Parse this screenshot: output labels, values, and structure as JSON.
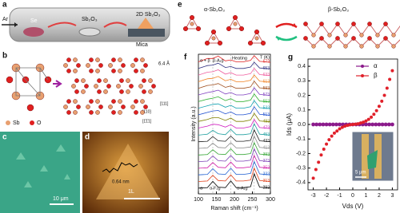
{
  "panels": {
    "a": {
      "label": "a",
      "gas": "Ar",
      "source": "Se",
      "precursor": "Sb₂O₃",
      "product": "2D Sb₂O₃",
      "substrate": "Mica"
    },
    "b": {
      "label": "b",
      "spacing": "6.4 Å",
      "legend": [
        "Sb",
        "O"
      ],
      "directions": [
        "[111]",
        "[110]",
        "[1̄1̄1]"
      ]
    },
    "c": {
      "label": "c",
      "scale": "10 μm"
    },
    "d": {
      "label": "d",
      "height": "0.64 nm",
      "layer": "1L"
    },
    "e": {
      "label": "e",
      "left": "α-Sb₂O₃",
      "right": "β-Sb₂O₃"
    }
  },
  "chart_data": [
    {
      "type": "line",
      "label": "f",
      "xlabel": "Raman shift (cm⁻¹)",
      "ylabel": "Intensity (a.u.)",
      "annotations": [
        "α + β",
        "β-A₁g",
        "Heating",
        "T (K)",
        "α",
        "α-F₂g",
        "α-A₁g"
      ],
      "x": [
        100,
        125,
        140,
        155,
        175,
        190,
        205,
        225,
        245,
        255,
        270,
        300
      ],
      "xlim": [
        100,
        300
      ],
      "xticks": [
        100,
        150,
        200,
        250,
        300
      ],
      "series": [
        {
          "name": "293",
          "color": "#000000",
          "values": [
            0.2,
            0.3,
            1.6,
            0.4,
            0.3,
            1.7,
            0.3,
            0.3,
            0.5,
            3.2,
            0.4,
            0.2
          ]
        },
        {
          "name": "313",
          "color": "#e0401a",
          "values": [
            0.2,
            0.3,
            1.5,
            0.4,
            0.3,
            1.6,
            0.3,
            0.3,
            0.5,
            3.0,
            0.4,
            0.2
          ]
        },
        {
          "name": "333",
          "color": "#1f5fd1",
          "values": [
            0.2,
            0.3,
            1.5,
            0.4,
            0.3,
            1.6,
            0.3,
            0.3,
            0.5,
            3.0,
            0.4,
            0.2
          ]
        },
        {
          "name": "353",
          "color": "#d11fa8",
          "values": [
            0.2,
            0.3,
            1.4,
            0.4,
            0.3,
            1.5,
            0.3,
            0.3,
            0.5,
            2.9,
            0.4,
            0.2
          ]
        },
        {
          "name": "373",
          "color": "#7b3fb5",
          "values": [
            0.2,
            0.3,
            1.4,
            0.4,
            0.3,
            1.5,
            0.3,
            0.3,
            0.5,
            2.9,
            0.4,
            0.2
          ]
        },
        {
          "name": "393",
          "color": "#3aa83a",
          "values": [
            0.2,
            0.3,
            1.3,
            0.4,
            0.3,
            1.5,
            0.3,
            0.3,
            0.5,
            2.8,
            0.4,
            0.2
          ]
        },
        {
          "name": "413",
          "color": "#888888",
          "values": [
            0.2,
            0.3,
            1.3,
            0.4,
            0.3,
            1.4,
            0.3,
            0.3,
            0.5,
            2.8,
            0.4,
            0.2
          ]
        },
        {
          "name": "433",
          "color": "#222222",
          "values": [
            0.2,
            0.3,
            1.3,
            0.4,
            0.3,
            1.4,
            0.3,
            0.3,
            0.5,
            2.7,
            0.4,
            0.2
          ]
        },
        {
          "name": "453",
          "color": "#20a0a0",
          "values": [
            0.2,
            0.4,
            1.2,
            0.5,
            0.3,
            1.4,
            0.3,
            0.3,
            0.5,
            2.6,
            0.4,
            0.2
          ]
        },
        {
          "name": "473",
          "color": "#d020c0",
          "values": [
            0.3,
            0.7,
            1.1,
            1.0,
            0.5,
            1.0,
            0.3,
            0.3,
            0.6,
            2.1,
            0.4,
            0.2
          ]
        },
        {
          "name": "493",
          "color": "#808000",
          "values": [
            0.3,
            0.7,
            1.1,
            1.1,
            0.5,
            1.0,
            0.3,
            0.3,
            0.6,
            2.0,
            0.4,
            0.2
          ]
        },
        {
          "name": "513",
          "color": "#2050d0",
          "values": [
            0.3,
            0.8,
            1.1,
            1.2,
            0.5,
            0.9,
            0.3,
            0.3,
            0.6,
            2.0,
            0.4,
            0.2
          ]
        },
        {
          "name": "533",
          "color": "#10a0b0",
          "values": [
            0.3,
            0.8,
            1.1,
            1.2,
            0.5,
            0.9,
            0.3,
            0.3,
            0.6,
            1.9,
            0.4,
            0.2
          ]
        },
        {
          "name": "553",
          "color": "#30b030",
          "values": [
            0.3,
            0.8,
            1.0,
            1.3,
            0.5,
            0.9,
            0.3,
            0.3,
            0.6,
            1.9,
            0.4,
            0.2
          ]
        },
        {
          "name": "573",
          "color": "#8040c0",
          "values": [
            0.3,
            0.8,
            1.0,
            1.3,
            0.5,
            0.8,
            0.3,
            0.3,
            0.6,
            1.8,
            0.4,
            0.2
          ]
        },
        {
          "name": "593",
          "color": "#a05020",
          "values": [
            0.3,
            0.9,
            1.0,
            1.3,
            0.5,
            0.8,
            0.3,
            0.3,
            0.6,
            1.8,
            0.4,
            0.2
          ]
        },
        {
          "name": "613",
          "color": "#f08020",
          "values": [
            0.3,
            0.9,
            1.0,
            1.4,
            0.5,
            0.8,
            0.3,
            0.3,
            0.6,
            1.7,
            0.4,
            0.2
          ]
        },
        {
          "name": "633",
          "color": "#f060a0",
          "values": [
            0.3,
            0.9,
            1.0,
            1.4,
            0.5,
            0.8,
            0.3,
            0.3,
            0.6,
            1.7,
            0.4,
            0.2
          ]
        },
        {
          "name": "653",
          "color": "#303080",
          "values": [
            0.3,
            0.9,
            1.0,
            1.4,
            0.5,
            0.7,
            0.3,
            0.3,
            0.6,
            1.6,
            0.4,
            0.2
          ]
        },
        {
          "name": "673",
          "color": "#e02020",
          "values": [
            0.3,
            1.0,
            1.0,
            1.5,
            0.5,
            0.7,
            0.3,
            0.3,
            0.6,
            1.6,
            0.4,
            0.2
          ]
        }
      ]
    },
    {
      "type": "scatter",
      "label": "g",
      "xlabel": "Vds (V)",
      "ylabel": "Ids (μA)",
      "inset_scale": "5 μm",
      "legend": "upper right",
      "xlim": [
        -3.4,
        3.4
      ],
      "xticks": [
        -3,
        -2,
        -1,
        0,
        1,
        2,
        3
      ],
      "ylim": [
        -0.45,
        0.45
      ],
      "yticks": [
        -0.4,
        -0.3,
        -0.2,
        -0.1,
        {
          "value": 0,
          "label": "0.0"
        },
        0.1,
        0.2,
        0.3,
        0.4
      ],
      "series": [
        {
          "name": "α",
          "color": "#8b1a8b",
          "x": [
            -3,
            -2.75,
            -2.5,
            -2.25,
            -2,
            -1.75,
            -1.5,
            -1.25,
            -1,
            -0.75,
            -0.5,
            -0.25,
            0,
            0.25,
            0.5,
            0.75,
            1,
            1.25,
            1.5,
            1.75,
            2,
            2.25,
            2.5,
            2.75,
            3
          ],
          "values": [
            0,
            0,
            0,
            0,
            0,
            0,
            0,
            0,
            0,
            0,
            0,
            0,
            0,
            0,
            0,
            0,
            0,
            0,
            0,
            0,
            0,
            0,
            0,
            0,
            0
          ]
        },
        {
          "name": "β",
          "color": "#e0202a",
          "x": [
            -3,
            -2.8,
            -2.6,
            -2.4,
            -2.2,
            -2,
            -1.8,
            -1.6,
            -1.4,
            -1.2,
            -1,
            -0.8,
            -0.6,
            -0.4,
            -0.2,
            0,
            0.2,
            0.4,
            0.6,
            0.8,
            1,
            1.2,
            1.4,
            1.6,
            1.8,
            2,
            2.2,
            2.4,
            2.6,
            2.8,
            3
          ],
          "values": [
            -0.37,
            -0.31,
            -0.26,
            -0.21,
            -0.17,
            -0.135,
            -0.105,
            -0.08,
            -0.06,
            -0.045,
            -0.03,
            -0.02,
            -0.012,
            -0.006,
            -0.002,
            0,
            0.002,
            0.005,
            0.01,
            0.016,
            0.024,
            0.035,
            0.05,
            0.07,
            0.095,
            0.125,
            0.16,
            0.2,
            0.25,
            0.31,
            0.37
          ]
        }
      ]
    }
  ]
}
